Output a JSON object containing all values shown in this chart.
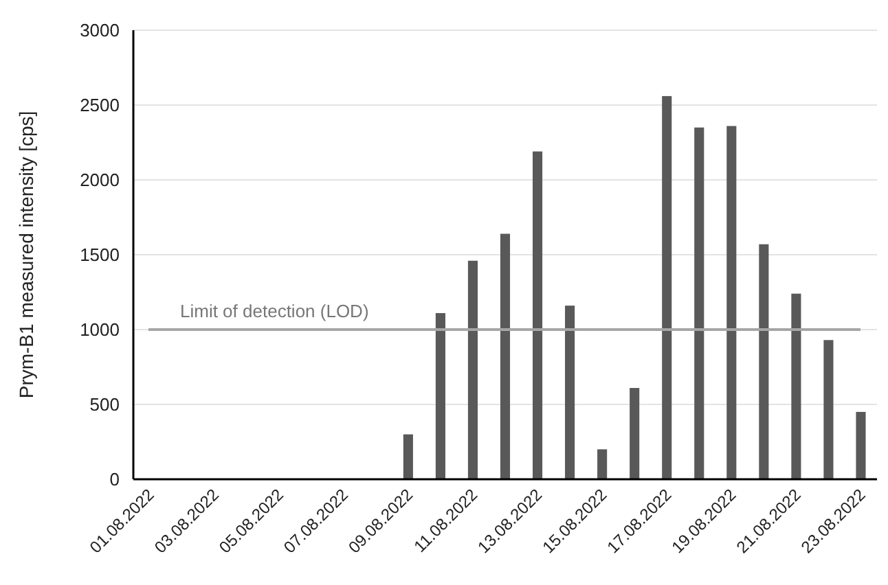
{
  "chart_data": {
    "type": "bar",
    "ylabel": "Prym-B1 measured intensity [cps]",
    "categories": [
      "01.08.2022",
      null,
      "03.08.2022",
      null,
      "05.08.2022",
      null,
      "07.08.2022",
      null,
      "09.08.2022",
      null,
      "11.08.2022",
      null,
      "13.08.2022",
      null,
      "15.08.2022",
      null,
      "17.08.2022",
      null,
      "19.08.2022",
      null,
      "21.08.2022",
      null,
      "23.08.2022"
    ],
    "values": [
      null,
      null,
      null,
      null,
      null,
      null,
      null,
      null,
      300,
      1110,
      1460,
      1640,
      2190,
      1160,
      200,
      610,
      2560,
      2350,
      2360,
      1570,
      1240,
      930,
      450
    ],
    "color": "#595959",
    "ylim": [
      0,
      3000
    ],
    "yticks": [
      0,
      500,
      1000,
      1500,
      2000,
      2500,
      3000
    ],
    "grid": "y",
    "ref_lines": [
      {
        "axis": "y",
        "value": 1000,
        "label": "Limit of detection (LOD)",
        "color": "#a6a6a6"
      }
    ]
  }
}
